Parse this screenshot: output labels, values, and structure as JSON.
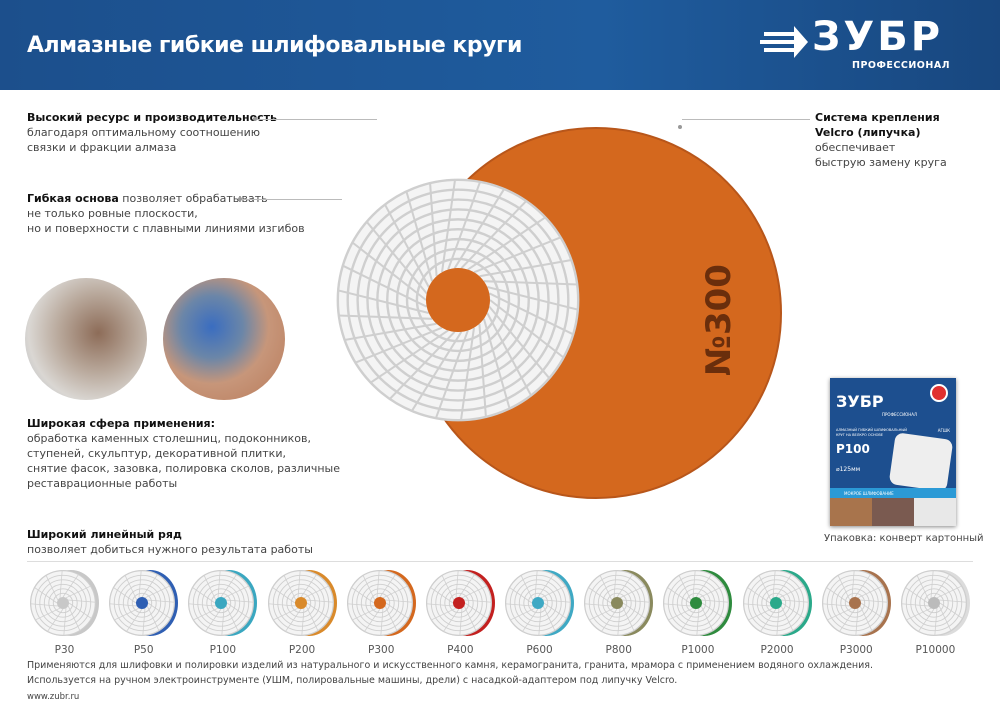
{
  "header": {
    "title": "Алмазные гибкие шлифовальные круги",
    "logo": {
      "brand": "ЗУБР",
      "subtitle": "ПРОФЕССИОНАЛ"
    },
    "colors": {
      "bg": "#1f5c9e"
    }
  },
  "features": [
    {
      "bold": "Высокий ресурс и производительность",
      "text": "благодаря оптимальному соотношению",
      "text2": "связки и фракции алмаза"
    },
    {
      "bold": "Гибкая основа",
      "text": " позволяет обрабатывать",
      "text2": "не только ровные плоскости,",
      "text3": "но и поверхности с плавными линиями изгибов"
    },
    {
      "bold": "Широкая сфера применения:",
      "text": "обработка каменных столешниц, подоконников,",
      "text2": "ступеней, скульптур, декоративной плитки,",
      "text3": "снятие фасок, зазовка, полировка сколов, различные",
      "text4": "реставрационные работы"
    },
    {
      "bold": "Широкий линейный ряд",
      "text": "позволяет добиться нужного результата работы"
    },
    {
      "bold": "Система крепления",
      "bold2": "Velcro (липучка)",
      "text": "обеспечивает",
      "text2": "быструю замену круга"
    }
  ],
  "main_disc": {
    "label": "№300",
    "color": "#d4681e"
  },
  "package": {
    "brand": "ЗУБР",
    "subtitle": "ПРОФЕССИОНАЛ",
    "desc": "АЛМАЗНЫЙ ГИБКИЙ ШЛИФОВАЛЬНЫЙ КРУГ НА ВЕЛКРО ОСНОВЕ",
    "code": "АГШК",
    "grit": "P100",
    "size": "⌀125мм",
    "mode": "МОКРОЕ ШЛИФОВАНИЕ",
    "caption": "Упаковка: конверт картонный"
  },
  "lineup": [
    {
      "label": "P30",
      "color": "#c8c8c8"
    },
    {
      "label": "P50",
      "color": "#2f5fb3"
    },
    {
      "label": "P100",
      "color": "#3aa7c0"
    },
    {
      "label": "P200",
      "color": "#d98a2b"
    },
    {
      "label": "P300",
      "color": "#d4681e"
    },
    {
      "label": "P400",
      "color": "#c3201f"
    },
    {
      "label": "P600",
      "color": "#3fa9c4"
    },
    {
      "label": "P800",
      "color": "#8a8a5e"
    },
    {
      "label": "P1000",
      "color": "#2e8b3e"
    },
    {
      "label": "P2000",
      "color": "#2aa98a"
    },
    {
      "label": "P3000",
      "color": "#a8734e"
    },
    {
      "label": "P10000",
      "color": "#dcdcdc"
    }
  ],
  "footer": {
    "line1": "Применяются для шлифовки и полировки изделий из натурального и искусственного камня, керамогранита, гранита, мрамора с применением водяного охлаждения.",
    "line2": "Используется на ручном электроинструменте (УШМ, полировальные машины, дрели) с насадкой-адаптером под липучку Velcro.",
    "url": "www.zubr.ru"
  }
}
